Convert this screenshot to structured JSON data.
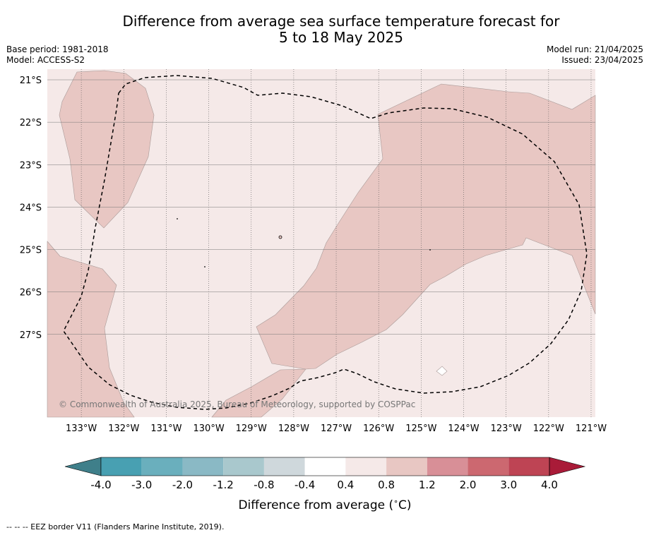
{
  "title": {
    "line1": "Difference from average sea surface temperature forecast for",
    "line2": "5 to 18 May 2025"
  },
  "meta_left": {
    "base_period": "Base period: 1981-2018",
    "model": "Model: ACCESS-S2"
  },
  "meta_right": {
    "model_run": "Model run: 21/04/2025",
    "issued": "Issued: 23/04/2025"
  },
  "map": {
    "lon_range": [
      -133.8,
      -120.9
    ],
    "lat_range": [
      -28.95,
      -20.75
    ],
    "lon_ticks": [
      {
        "value": -133,
        "label": "133°W"
      },
      {
        "value": -132,
        "label": "132°W"
      },
      {
        "value": -131,
        "label": "131°W"
      },
      {
        "value": -130,
        "label": "130°W"
      },
      {
        "value": -129,
        "label": "129°W"
      },
      {
        "value": -128,
        "label": "128°W"
      },
      {
        "value": -127,
        "label": "127°W"
      },
      {
        "value": -126,
        "label": "126°W"
      },
      {
        "value": -125,
        "label": "125°W"
      },
      {
        "value": -124,
        "label": "124°W"
      },
      {
        "value": -123,
        "label": "123°W"
      },
      {
        "value": -122,
        "label": "122°W"
      },
      {
        "value": -121,
        "label": "121°W"
      }
    ],
    "lat_ticks": [
      {
        "value": -21,
        "label": "21°S"
      },
      {
        "value": -22,
        "label": "22°S"
      },
      {
        "value": -23,
        "label": "23°S"
      },
      {
        "value": -24,
        "label": "24°S"
      },
      {
        "value": -25,
        "label": "25°S"
      },
      {
        "value": -26,
        "label": "26°S"
      },
      {
        "value": -27,
        "label": "27°S"
      }
    ],
    "background_class": "0.4 to 0.8",
    "copyright": "© Commonwealth of Australia 2025, Bureau of Meteorology, supported by COSPPac",
    "colors": {
      "light_pink": "#f5e9e8",
      "pink": "#e8c7c3",
      "white": "#ffffff",
      "border": "#000000"
    }
  },
  "colorbar": {
    "labels": [
      "-4.0",
      "-3.0",
      "-2.0",
      "-1.2",
      "-0.8",
      "-0.4",
      "0.4",
      "0.8",
      "1.2",
      "2.0",
      "3.0",
      "4.0"
    ],
    "colors": [
      "#3f7f8a",
      "#48a0b2",
      "#6aafbd",
      "#8ab9c5",
      "#a9c8cd",
      "#cfd8dc",
      "#ffffff",
      "#f5e9e8",
      "#e8c7c3",
      "#d88f97",
      "#cc6870",
      "#be4454",
      "#a91b38"
    ],
    "label": "Difference from average ($^\\circ$C)",
    "label_text": "Difference from average (",
    "label_unit": "C)"
  },
  "footnote": "--  --  -- EEZ border V11 (Flanders Marine Institute, 2019)."
}
